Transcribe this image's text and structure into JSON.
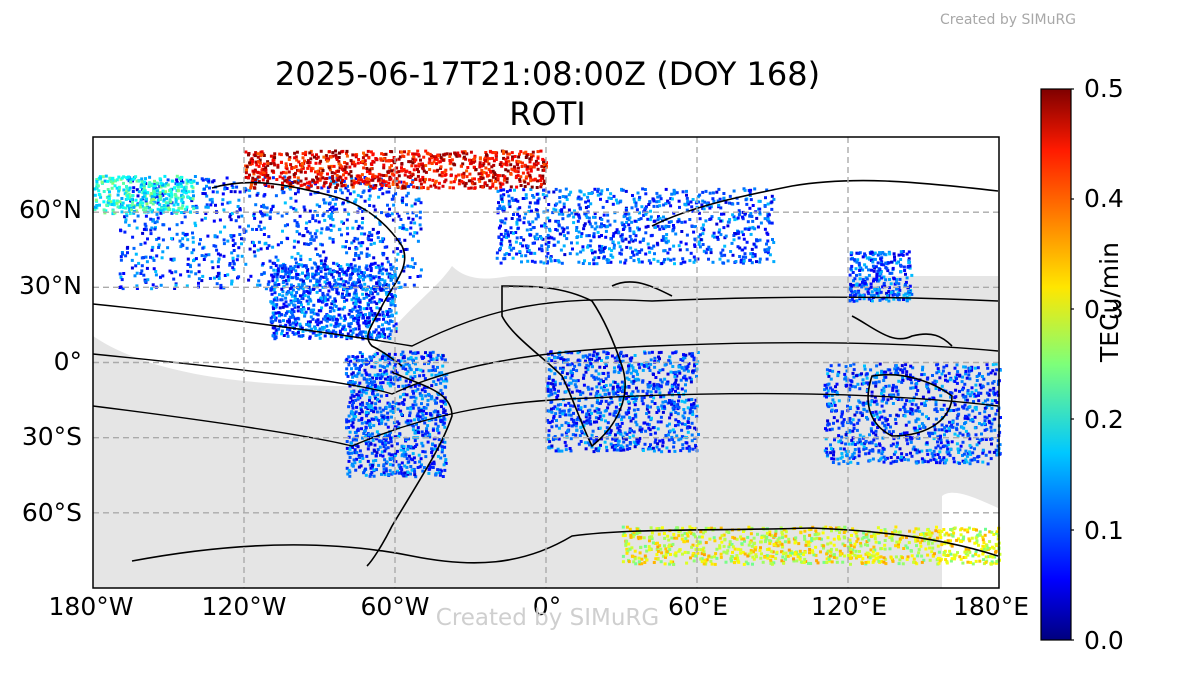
{
  "header": {
    "credit": "Created by SIMuRG",
    "title_line1": "2025-06-17T21:08:00Z (DOY 168)",
    "title_line2": "ROTI"
  },
  "watermark": "Created by SIMuRG",
  "map": {
    "projection": "PlateCarree",
    "lon_range": [
      -180,
      180
    ],
    "lat_range": [
      -90,
      90
    ],
    "gridlines": "dashed",
    "night_shading": "gray",
    "x_ticks": [
      "180°W",
      "120°W",
      "60°W",
      "0°",
      "60°E",
      "120°E",
      "180°E"
    ],
    "y_ticks": [
      "60°N",
      "30°N",
      "0°",
      "30°S",
      "60°S"
    ],
    "y_tick_lats": [
      60,
      30,
      0,
      -30,
      -60
    ],
    "x_tick_lons": [
      -180,
      -120,
      -60,
      0,
      60,
      120,
      180
    ]
  },
  "colorbar": {
    "label": "TECu/min",
    "colormap": "jet",
    "min": 0.0,
    "max": 0.5,
    "ticks": [
      "0.5",
      "0.4",
      "0.3",
      "0.2",
      "0.1",
      "0.0"
    ]
  },
  "chart_data": {
    "type": "heatmap",
    "title": "2025-06-17T21:08:00Z (DOY 168)",
    "subtitle": "ROTI",
    "colorbar_label": "TECu/min",
    "value_range": [
      0.0,
      0.5
    ],
    "regions": [
      {
        "lon": [
          -170,
          -50
        ],
        "lat": [
          30,
          75
        ],
        "level": 0.1
      },
      {
        "lon": [
          -110,
          -60
        ],
        "lat": [
          10,
          40
        ],
        "level": 0.1
      },
      {
        "lon": [
          -80,
          -40
        ],
        "lat": [
          -45,
          5
        ],
        "level": 0.1
      },
      {
        "lon": [
          -20,
          90
        ],
        "lat": [
          40,
          70
        ],
        "level": 0.1
      },
      {
        "lon": [
          0,
          60
        ],
        "lat": [
          -35,
          5
        ],
        "level": 0.1
      },
      {
        "lon": [
          110,
          180
        ],
        "lat": [
          -40,
          0
        ],
        "level": 0.1
      },
      {
        "lon": [
          120,
          145
        ],
        "lat": [
          25,
          45
        ],
        "level": 0.1
      },
      {
        "lon": [
          -120,
          0
        ],
        "lat": [
          70,
          85
        ],
        "level": 0.45
      },
      {
        "lon": [
          -180,
          -140
        ],
        "lat": [
          60,
          75
        ],
        "level": 0.2
      },
      {
        "lon": [
          30,
          180
        ],
        "lat": [
          -80,
          -65
        ],
        "level": 0.3
      }
    ]
  }
}
